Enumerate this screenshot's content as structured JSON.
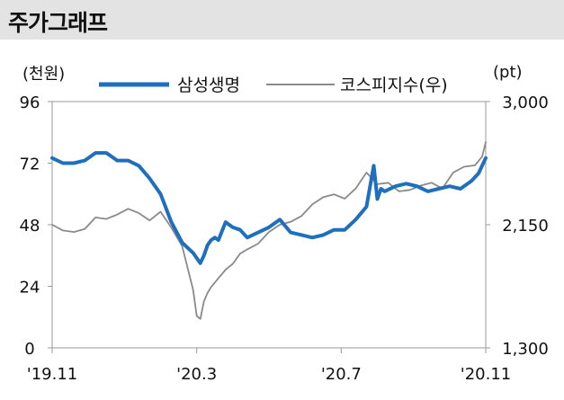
{
  "header": {
    "title": "주가그래프"
  },
  "chart_data": {
    "type": "line",
    "left_unit": "(천원)",
    "right_unit": "(pt)",
    "legend_position": "top",
    "grid": false,
    "x_ticks": [
      "'19.11",
      "'20.3",
      "'20.7",
      "'20.11"
    ],
    "left_axis": {
      "ticks": [
        "96",
        "72",
        "48",
        "24",
        "0"
      ],
      "ylim": [
        0,
        96
      ]
    },
    "right_axis": {
      "ticks": [
        "3,000",
        "2,150",
        "1,300"
      ],
      "ylim": [
        1300,
        3000
      ]
    },
    "x_range": [
      0,
      12
    ],
    "series": [
      {
        "name": "삼성생명",
        "axis": "left",
        "color": "#1f6fbf",
        "x": [
          0.0,
          0.3,
          0.6,
          0.9,
          1.2,
          1.5,
          1.8,
          2.1,
          2.4,
          2.7,
          3.0,
          3.3,
          3.6,
          3.9,
          4.1,
          4.2,
          4.3,
          4.4,
          4.5,
          4.6,
          4.8,
          5.0,
          5.2,
          5.4,
          5.7,
          6.0,
          6.3,
          6.6,
          6.9,
          7.2,
          7.5,
          7.8,
          8.1,
          8.4,
          8.7,
          8.9,
          9.0,
          9.1,
          9.2,
          9.5,
          9.8,
          10.1,
          10.4,
          10.7,
          11.0,
          11.3,
          11.6,
          11.8,
          12.0
        ],
        "values": [
          74,
          72,
          72,
          73,
          76,
          76,
          73,
          73,
          71,
          66,
          60,
          49,
          41,
          37,
          33,
          36,
          40,
          42,
          43,
          42,
          49,
          47,
          46,
          43,
          45,
          47,
          50,
          45,
          44,
          43,
          44,
          46,
          46,
          50,
          55,
          71,
          58,
          62,
          61,
          63,
          64,
          63,
          61,
          62,
          63,
          62,
          65,
          68,
          74
        ]
      },
      {
        "name": "코스피지수(우)",
        "axis": "right",
        "color": "#8a8a8a",
        "x": [
          0.0,
          0.3,
          0.6,
          0.9,
          1.2,
          1.5,
          1.8,
          2.1,
          2.4,
          2.7,
          3.0,
          3.3,
          3.6,
          3.9,
          4.0,
          4.1,
          4.2,
          4.3,
          4.4,
          4.6,
          4.8,
          5.0,
          5.2,
          5.4,
          5.7,
          6.0,
          6.3,
          6.6,
          6.9,
          7.2,
          7.5,
          7.8,
          8.1,
          8.4,
          8.7,
          9.0,
          9.3,
          9.6,
          9.9,
          10.2,
          10.5,
          10.8,
          11.1,
          11.4,
          11.7,
          11.9,
          12.0
        ],
        "values": [
          2150,
          2110,
          2100,
          2120,
          2200,
          2190,
          2220,
          2260,
          2230,
          2180,
          2240,
          2130,
          2000,
          1700,
          1520,
          1500,
          1620,
          1680,
          1720,
          1780,
          1840,
          1880,
          1950,
          1980,
          2020,
          2100,
          2150,
          2170,
          2210,
          2290,
          2340,
          2360,
          2330,
          2400,
          2510,
          2430,
          2440,
          2380,
          2390,
          2420,
          2440,
          2400,
          2510,
          2550,
          2560,
          2620,
          2720
        ]
      }
    ]
  }
}
